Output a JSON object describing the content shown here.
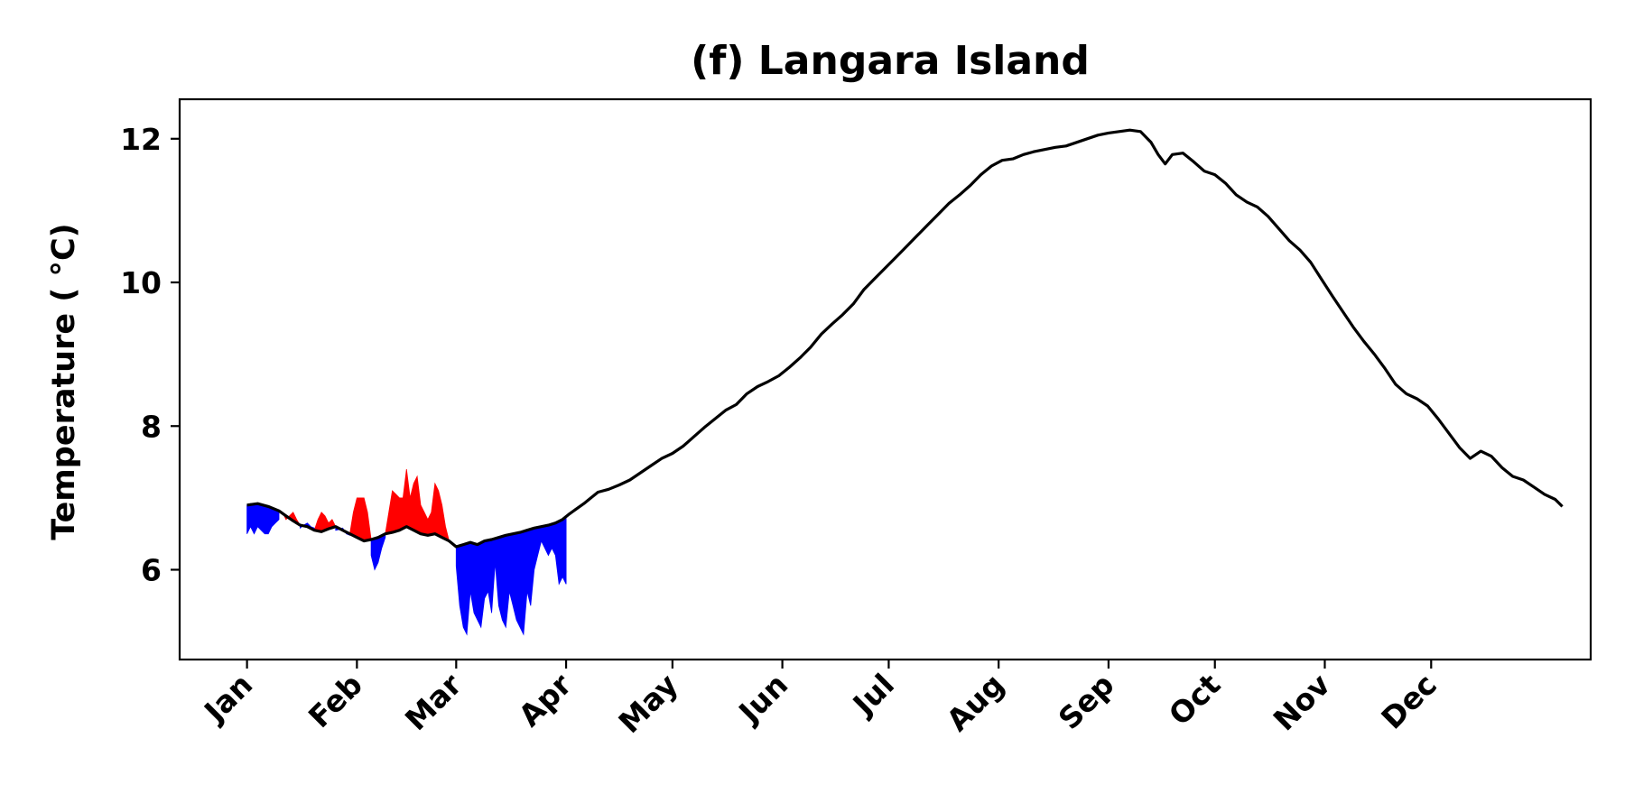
{
  "chart_data": {
    "type": "line",
    "title": "(f) Langara Island",
    "xlabel": "",
    "ylabel": "Temperature ( $^\\circ$C)",
    "ylabel_display": "Temperature ( °C)",
    "x_unit": "day of year",
    "xlim": [
      -18,
      380
    ],
    "ylim": [
      4.75,
      12.55
    ],
    "grid": false,
    "legend": "none",
    "xticks": [
      {
        "label": "Jan",
        "value": 1
      },
      {
        "label": "Feb",
        "value": 32
      },
      {
        "label": "Mar",
        "value": 60
      },
      {
        "label": "Apr",
        "value": 91
      },
      {
        "label": "May",
        "value": 121
      },
      {
        "label": "Jun",
        "value": 152
      },
      {
        "label": "Jul",
        "value": 182
      },
      {
        "label": "Aug",
        "value": 213
      },
      {
        "label": "Sep",
        "value": 244
      },
      {
        "label": "Oct",
        "value": 274
      },
      {
        "label": "Nov",
        "value": 305
      },
      {
        "label": "Dec",
        "value": 335
      }
    ],
    "yticks": [
      {
        "label": "6",
        "value": 6
      },
      {
        "label": "8",
        "value": 8
      },
      {
        "label": "10",
        "value": 10
      },
      {
        "label": "12",
        "value": 12
      }
    ],
    "colors": {
      "climatology": "#000000",
      "above": "#ff0000",
      "below": "#0000ff"
    },
    "series": [
      {
        "kind": "line",
        "points": [
          [
            1,
            6.9
          ],
          [
            4,
            6.92
          ],
          [
            7,
            6.88
          ],
          [
            10,
            6.82
          ],
          [
            12,
            6.75
          ],
          [
            14,
            6.68
          ],
          [
            16,
            6.62
          ],
          [
            18,
            6.6
          ],
          [
            20,
            6.55
          ],
          [
            22,
            6.53
          ],
          [
            24,
            6.57
          ],
          [
            26,
            6.6
          ],
          [
            28,
            6.55
          ],
          [
            30,
            6.5
          ],
          [
            32,
            6.45
          ],
          [
            34,
            6.4
          ],
          [
            36,
            6.42
          ],
          [
            38,
            6.45
          ],
          [
            40,
            6.5
          ],
          [
            42,
            6.52
          ],
          [
            44,
            6.55
          ],
          [
            46,
            6.6
          ],
          [
            48,
            6.55
          ],
          [
            50,
            6.5
          ],
          [
            52,
            6.48
          ],
          [
            54,
            6.5
          ],
          [
            56,
            6.45
          ],
          [
            58,
            6.4
          ],
          [
            60,
            6.32
          ],
          [
            62,
            6.35
          ],
          [
            64,
            6.38
          ],
          [
            66,
            6.35
          ],
          [
            68,
            6.4
          ],
          [
            70,
            6.42
          ],
          [
            72,
            6.45
          ],
          [
            74,
            6.48
          ],
          [
            76,
            6.5
          ],
          [
            78,
            6.52
          ],
          [
            80,
            6.55
          ],
          [
            82,
            6.58
          ],
          [
            84,
            6.6
          ],
          [
            86,
            6.62
          ],
          [
            88,
            6.65
          ],
          [
            90,
            6.7
          ],
          [
            92,
            6.78
          ],
          [
            94,
            6.85
          ],
          [
            96,
            6.92
          ],
          [
            98,
            7.0
          ],
          [
            100,
            7.08
          ],
          [
            103,
            7.12
          ],
          [
            106,
            7.18
          ],
          [
            109,
            7.25
          ],
          [
            112,
            7.35
          ],
          [
            115,
            7.45
          ],
          [
            118,
            7.55
          ],
          [
            121,
            7.62
          ],
          [
            124,
            7.72
          ],
          [
            127,
            7.85
          ],
          [
            130,
            7.98
          ],
          [
            133,
            8.1
          ],
          [
            136,
            8.22
          ],
          [
            139,
            8.3
          ],
          [
            142,
            8.45
          ],
          [
            145,
            8.55
          ],
          [
            148,
            8.62
          ],
          [
            151,
            8.7
          ],
          [
            154,
            8.82
          ],
          [
            157,
            8.95
          ],
          [
            160,
            9.1
          ],
          [
            163,
            9.28
          ],
          [
            166,
            9.42
          ],
          [
            169,
            9.55
          ],
          [
            172,
            9.7
          ],
          [
            175,
            9.9
          ],
          [
            178,
            10.05
          ],
          [
            181,
            10.2
          ],
          [
            184,
            10.35
          ],
          [
            187,
            10.5
          ],
          [
            190,
            10.65
          ],
          [
            193,
            10.8
          ],
          [
            196,
            10.95
          ],
          [
            199,
            11.1
          ],
          [
            202,
            11.22
          ],
          [
            205,
            11.35
          ],
          [
            208,
            11.5
          ],
          [
            211,
            11.62
          ],
          [
            214,
            11.7
          ],
          [
            217,
            11.72
          ],
          [
            220,
            11.78
          ],
          [
            223,
            11.82
          ],
          [
            226,
            11.85
          ],
          [
            229,
            11.88
          ],
          [
            232,
            11.9
          ],
          [
            235,
            11.95
          ],
          [
            238,
            12.0
          ],
          [
            241,
            12.05
          ],
          [
            244,
            12.08
          ],
          [
            247,
            12.1
          ],
          [
            250,
            12.12
          ],
          [
            253,
            12.1
          ],
          [
            256,
            11.95
          ],
          [
            258,
            11.78
          ],
          [
            260,
            11.65
          ],
          [
            262,
            11.78
          ],
          [
            265,
            11.8
          ],
          [
            268,
            11.68
          ],
          [
            271,
            11.55
          ],
          [
            274,
            11.5
          ],
          [
            277,
            11.38
          ],
          [
            280,
            11.22
          ],
          [
            283,
            11.12
          ],
          [
            286,
            11.05
          ],
          [
            289,
            10.92
          ],
          [
            292,
            10.75
          ],
          [
            295,
            10.58
          ],
          [
            298,
            10.45
          ],
          [
            301,
            10.28
          ],
          [
            304,
            10.05
          ],
          [
            307,
            9.82
          ],
          [
            310,
            9.6
          ],
          [
            313,
            9.38
          ],
          [
            316,
            9.18
          ],
          [
            319,
            9.0
          ],
          [
            322,
            8.8
          ],
          [
            325,
            8.58
          ],
          [
            328,
            8.45
          ],
          [
            331,
            8.38
          ],
          [
            334,
            8.28
          ],
          [
            337,
            8.1
          ],
          [
            340,
            7.9
          ],
          [
            343,
            7.7
          ],
          [
            346,
            7.55
          ],
          [
            349,
            7.65
          ],
          [
            352,
            7.58
          ],
          [
            355,
            7.42
          ],
          [
            358,
            7.3
          ],
          [
            361,
            7.25
          ],
          [
            364,
            7.15
          ],
          [
            367,
            7.05
          ],
          [
            370,
            6.98
          ],
          [
            372,
            6.88
          ]
        ]
      },
      {
        "kind": "band",
        "points": [
          [
            1,
            6.9,
            6.5
          ],
          [
            2,
            6.92,
            6.6
          ],
          [
            3,
            6.92,
            6.5
          ],
          [
            4,
            6.92,
            6.6
          ],
          [
            5,
            6.9,
            6.55
          ],
          [
            6,
            6.88,
            6.5
          ],
          [
            7,
            6.88,
            6.5
          ],
          [
            8,
            6.86,
            6.6
          ],
          [
            9,
            6.84,
            6.65
          ],
          [
            10,
            6.82,
            6.7
          ],
          [
            16,
            6.62,
            6.58
          ],
          [
            17,
            6.61,
            6.62
          ],
          [
            18,
            6.6,
            6.65
          ],
          [
            19,
            6.58,
            6.6
          ],
          [
            20,
            6.55,
            6.58
          ],
          [
            26,
            6.6,
            6.55
          ],
          [
            27,
            6.58,
            6.56
          ],
          [
            28,
            6.55,
            6.58
          ],
          [
            29,
            6.53,
            6.5
          ],
          [
            30,
            6.5,
            6.48
          ],
          [
            36,
            6.42,
            6.2
          ],
          [
            37,
            6.44,
            6.0
          ],
          [
            38,
            6.45,
            6.1
          ],
          [
            39,
            6.48,
            6.3
          ],
          [
            40,
            6.5,
            6.45
          ],
          [
            60,
            6.32,
            6.05
          ],
          [
            61,
            6.33,
            5.5
          ],
          [
            62,
            6.35,
            5.2
          ],
          [
            63,
            6.36,
            5.1
          ],
          [
            64,
            6.38,
            5.7
          ],
          [
            65,
            6.36,
            5.4
          ],
          [
            66,
            6.35,
            5.3
          ],
          [
            67,
            6.38,
            5.2
          ],
          [
            68,
            6.4,
            5.6
          ],
          [
            69,
            6.41,
            5.7
          ],
          [
            70,
            6.42,
            5.4
          ],
          [
            71,
            6.44,
            6.1
          ],
          [
            72,
            6.45,
            5.5
          ],
          [
            73,
            6.46,
            5.3
          ],
          [
            74,
            6.48,
            5.2
          ],
          [
            75,
            6.49,
            5.7
          ],
          [
            76,
            6.5,
            5.5
          ],
          [
            77,
            6.51,
            5.3
          ],
          [
            78,
            6.52,
            5.2
          ],
          [
            79,
            6.54,
            5.1
          ],
          [
            80,
            6.55,
            5.7
          ],
          [
            81,
            6.56,
            5.5
          ],
          [
            82,
            6.58,
            6.0
          ],
          [
            83,
            6.59,
            6.2
          ],
          [
            84,
            6.6,
            6.4
          ],
          [
            85,
            6.61,
            6.3
          ],
          [
            86,
            6.62,
            6.2
          ],
          [
            87,
            6.64,
            6.3
          ],
          [
            88,
            6.65,
            6.2
          ],
          [
            89,
            6.68,
            5.8
          ],
          [
            90,
            6.7,
            5.9
          ],
          [
            91,
            6.74,
            5.8
          ]
        ]
      },
      {
        "kind": "band",
        "points": [
          [
            10,
            6.82,
            6.82
          ],
          [
            11,
            6.78,
            6.8
          ],
          [
            12,
            6.75,
            6.7
          ],
          [
            13,
            6.72,
            6.75
          ],
          [
            14,
            6.68,
            6.8
          ],
          [
            15,
            6.65,
            6.7
          ],
          [
            16,
            6.62,
            6.62
          ],
          [
            20,
            6.55,
            6.55
          ],
          [
            21,
            6.54,
            6.7
          ],
          [
            22,
            6.53,
            6.8
          ],
          [
            23,
            6.55,
            6.75
          ],
          [
            24,
            6.57,
            6.65
          ],
          [
            25,
            6.58,
            6.7
          ],
          [
            26,
            6.6,
            6.6
          ],
          [
            30,
            6.5,
            6.5
          ],
          [
            31,
            6.48,
            6.8
          ],
          [
            32,
            6.45,
            7.0
          ],
          [
            33,
            6.42,
            7.0
          ],
          [
            34,
            6.4,
            7.0
          ],
          [
            35,
            6.41,
            6.8
          ],
          [
            36,
            6.42,
            6.42
          ],
          [
            40,
            6.5,
            6.5
          ],
          [
            41,
            6.51,
            6.8
          ],
          [
            42,
            6.52,
            7.1
          ],
          [
            43,
            6.54,
            7.05
          ],
          [
            44,
            6.55,
            7.0
          ],
          [
            45,
            6.58,
            7.0
          ],
          [
            46,
            6.6,
            7.4
          ],
          [
            47,
            6.58,
            7.0
          ],
          [
            48,
            6.55,
            7.2
          ],
          [
            49,
            6.52,
            7.3
          ],
          [
            50,
            6.5,
            6.9
          ],
          [
            51,
            6.49,
            6.8
          ],
          [
            52,
            6.48,
            6.7
          ],
          [
            53,
            6.49,
            6.8
          ],
          [
            54,
            6.5,
            7.2
          ],
          [
            55,
            6.48,
            7.1
          ],
          [
            56,
            6.45,
            6.9
          ],
          [
            57,
            6.42,
            6.6
          ],
          [
            58,
            6.4,
            6.4
          ]
        ]
      }
    ]
  }
}
